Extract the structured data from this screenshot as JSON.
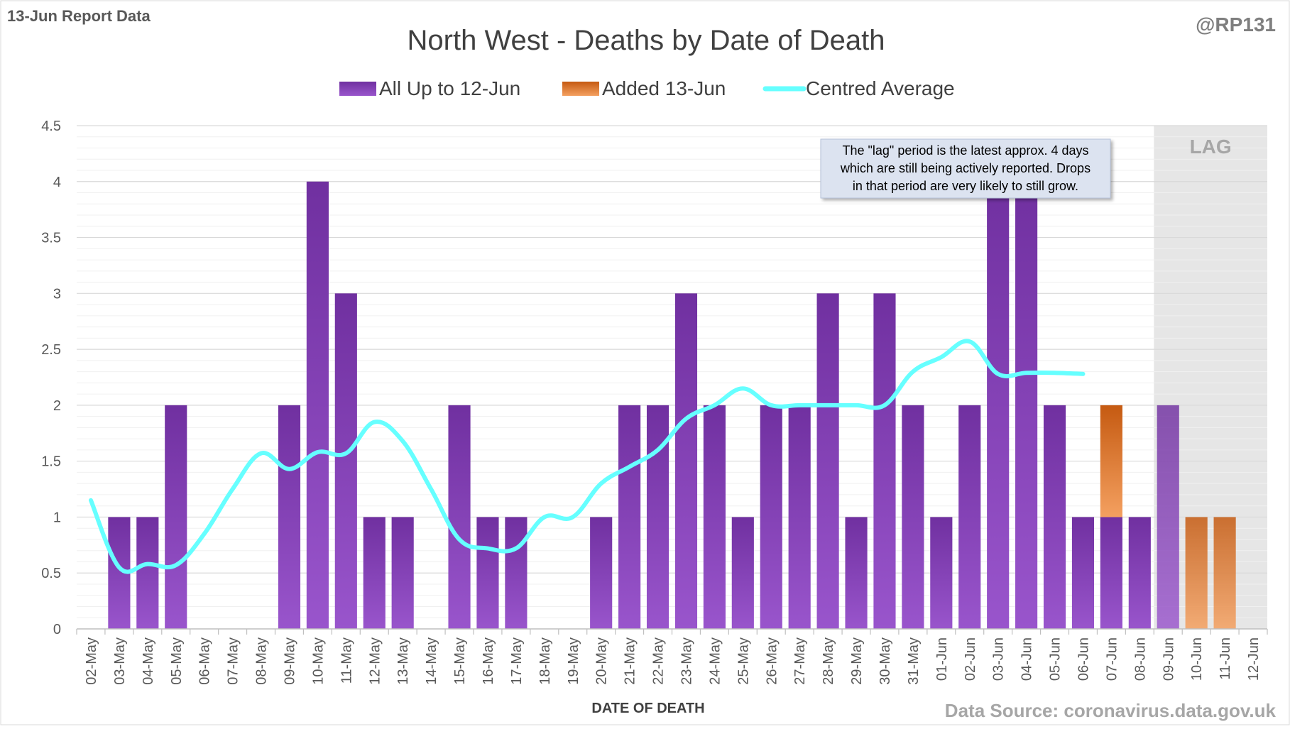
{
  "header": {
    "report_label": "13-Jun Report Data",
    "handle": "@RP131"
  },
  "footer": {
    "source": "Data Source: coronavirus.data.gov.uk"
  },
  "annotation": {
    "lines": [
      "The \"lag\" period is the latest approx. 4 days",
      "which are still being actively reported.  Drops",
      "in that period are very likely to still grow."
    ]
  },
  "colors": {
    "existing": "#7030A0",
    "existing_light": "#9955CC",
    "added": "#C55A11",
    "added_light": "#F4A060",
    "average": "#66FFFF",
    "lag_bg": "#E6E6E6",
    "grid": "#D9D9D9",
    "text": "#595959"
  },
  "chart_data": {
    "type": "bar",
    "title": "North West - Deaths by Date of Death",
    "xlabel": "DATE OF DEATH",
    "ylabel": "",
    "ylim": [
      0,
      4.5
    ],
    "yticks": [
      0,
      0.5,
      1,
      1.5,
      2,
      2.5,
      3,
      3.5,
      4,
      4.5
    ],
    "stacked": true,
    "legend_position": "top",
    "categories": [
      "02-May",
      "03-May",
      "04-May",
      "05-May",
      "06-May",
      "07-May",
      "08-May",
      "09-May",
      "10-May",
      "11-May",
      "12-May",
      "13-May",
      "14-May",
      "15-May",
      "16-May",
      "17-May",
      "18-May",
      "19-May",
      "20-May",
      "21-May",
      "22-May",
      "23-May",
      "24-May",
      "25-May",
      "26-May",
      "27-May",
      "28-May",
      "29-May",
      "30-May",
      "31-May",
      "01-Jun",
      "02-Jun",
      "03-Jun",
      "04-Jun",
      "05-Jun",
      "06-Jun",
      "07-Jun",
      "08-Jun",
      "09-Jun",
      "10-Jun",
      "11-Jun",
      "12-Jun"
    ],
    "series": [
      {
        "name": "All Up to 12-Jun",
        "kind": "bar",
        "values": [
          0,
          1,
          1,
          2,
          0,
          0,
          0,
          2,
          4,
          3,
          1,
          1,
          0,
          2,
          1,
          1,
          0,
          0,
          1,
          2,
          2,
          3,
          2,
          1,
          2,
          2,
          3,
          1,
          3,
          2,
          1,
          2,
          4,
          4,
          2,
          1,
          1,
          1,
          2,
          0,
          0,
          0
        ]
      },
      {
        "name": "Added 13-Jun",
        "kind": "bar",
        "values": [
          0,
          0,
          0,
          0,
          0,
          0,
          0,
          0,
          0,
          0,
          0,
          0,
          0,
          0,
          0,
          0,
          0,
          0,
          0,
          0,
          0,
          0,
          0,
          0,
          0,
          0,
          0,
          0,
          0,
          0,
          0,
          0,
          0,
          0,
          0,
          0,
          1,
          0,
          0,
          1,
          1,
          0
        ]
      },
      {
        "name": "Centred Average",
        "kind": "line",
        "values": [
          1.15,
          0.55,
          0.58,
          0.57,
          0.85,
          1.25,
          1.57,
          1.43,
          1.58,
          1.57,
          1.85,
          1.68,
          1.25,
          0.8,
          0.72,
          0.72,
          1.0,
          1.0,
          1.3,
          1.45,
          1.6,
          1.88,
          2.0,
          2.15,
          2.0,
          2.0,
          2.0,
          2.0,
          2.0,
          2.3,
          2.43,
          2.57,
          2.28,
          2.29,
          2.29,
          2.28,
          null,
          null,
          null,
          null,
          null,
          null
        ]
      }
    ],
    "lag_region": {
      "label": "LAG",
      "start": "09-Jun",
      "end": "12-Jun"
    }
  }
}
